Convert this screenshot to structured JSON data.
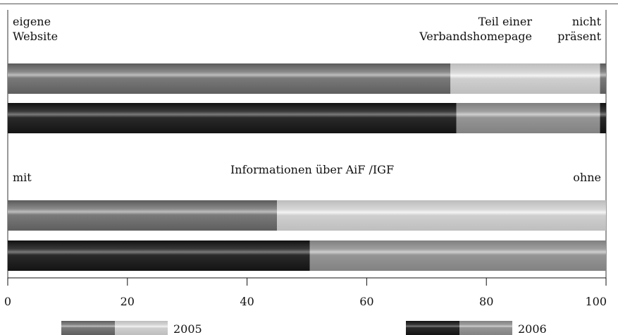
{
  "chart_data": {
    "type": "bar",
    "stacked": true,
    "orientation": "horizontal",
    "xlim": [
      0,
      100
    ],
    "x_ticks": [
      "0",
      "20",
      "40",
      "60",
      "80",
      "100"
    ],
    "grid": false,
    "legend_position": "bottom",
    "legend": [
      {
        "name": "2005",
        "colors": [
          "#6e6e6e",
          "#c8c8c8"
        ]
      },
      {
        "name": "2006",
        "colors": [
          "#1e1e1e",
          "#8f8f8f"
        ]
      }
    ],
    "panels": [
      {
        "title": "",
        "category_labels": [
          "eigene\nWebsite",
          "Teil einer\nVerbandshomepage",
          "nicht\npräsent"
        ],
        "bars": [
          {
            "year": "2005",
            "values": [
              74,
              25,
              1
            ]
          },
          {
            "year": "2006",
            "values": [
              75,
              24,
              1
            ]
          }
        ]
      },
      {
        "title": "Informationen über AiF /IGF",
        "category_labels": [
          "mit",
          "ohne"
        ],
        "bars": [
          {
            "year": "2005",
            "values": [
              45,
              55
            ]
          },
          {
            "year": "2006",
            "values": [
              50.5,
              49.5
            ]
          }
        ]
      }
    ]
  }
}
